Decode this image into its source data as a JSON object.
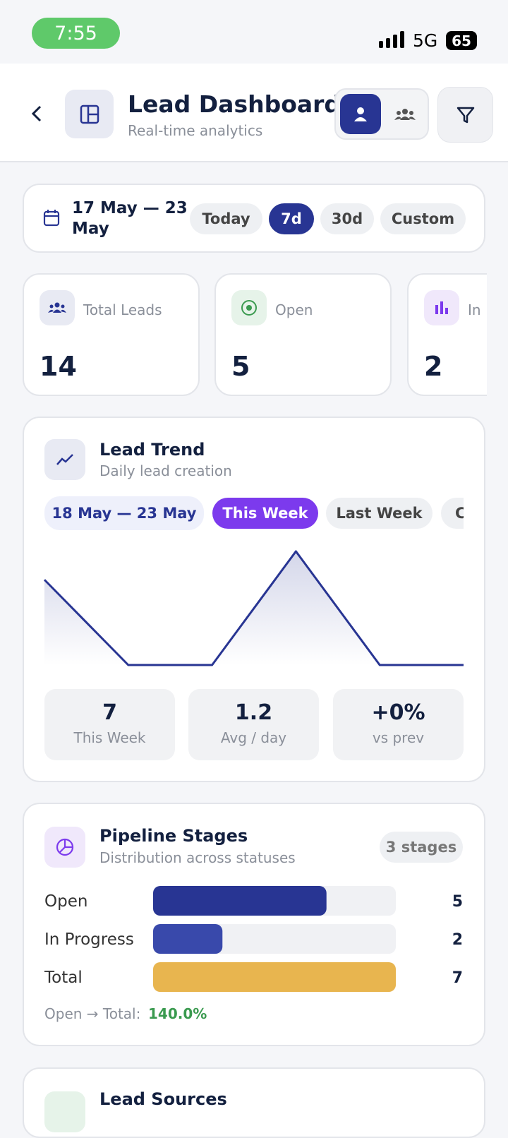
{
  "status": {
    "time": "7:55",
    "network": "5G",
    "battery": "65"
  },
  "header": {
    "title": "Lead Dashboard",
    "subtitle": "Real-time analytics"
  },
  "date_filter": {
    "range": "17 May — 23 May",
    "options": [
      "Today",
      "7d",
      "30d",
      "Custom"
    ]
  },
  "stats": [
    {
      "label": "Total Leads",
      "value": "14"
    },
    {
      "label": "Open",
      "value": "5"
    },
    {
      "label": "In",
      "value": "2"
    }
  ],
  "chart_data": [
    {
      "type": "line",
      "title": "Lead Trend",
      "subtitle": "Daily lead creation",
      "range": "18 May — 23 May",
      "tabs": [
        "This Week",
        "Last Week",
        "C"
      ],
      "values": [
        3,
        0,
        0,
        4,
        0,
        0
      ],
      "color": "#283593",
      "ylim": [
        0,
        4
      ],
      "summary": [
        {
          "value": "7",
          "label": "This Week"
        },
        {
          "value": "1.2",
          "label": "Avg / day"
        },
        {
          "value": "+0%",
          "label": "vs prev"
        }
      ]
    },
    {
      "type": "bar",
      "title": "Pipeline Stages",
      "subtitle": "Distribution across statuses",
      "badge": "3 stages",
      "categories": [
        "Open",
        "In Progress",
        "Total"
      ],
      "values": [
        5,
        2,
        7
      ],
      "colors": [
        "#283593",
        "#3949ab",
        "#e8b54f"
      ],
      "xlim": [
        0,
        7
      ],
      "footer_label": "Open → Total:",
      "footer_value": "140.0%"
    }
  ],
  "next_card": {
    "title": "Lead Sources"
  }
}
